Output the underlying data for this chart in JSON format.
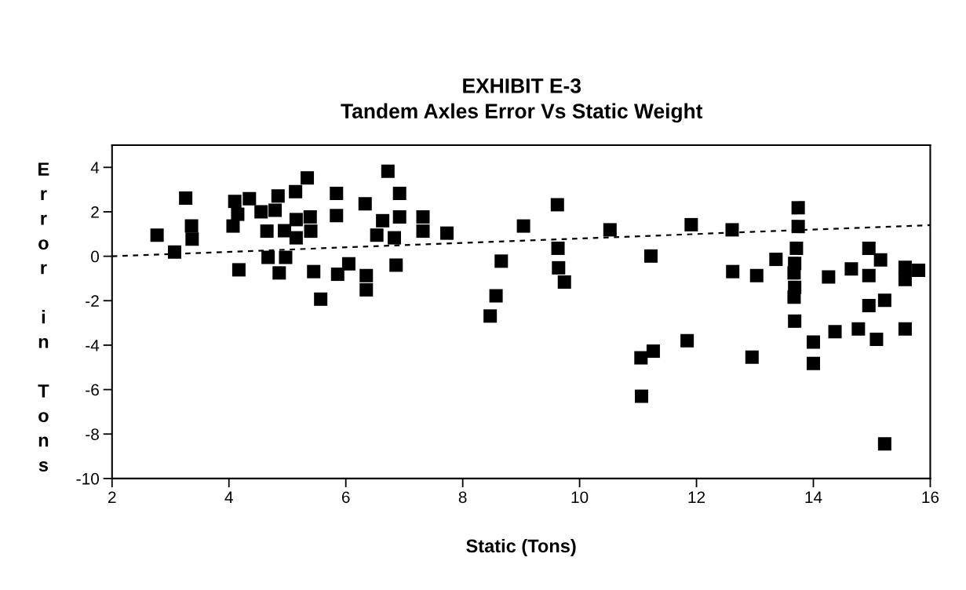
{
  "chart_data": {
    "type": "scatter",
    "title": "EXHIBIT E-3\nTandem Axles Error Vs Static Weight",
    "xlabel": "Static (Tons)",
    "ylabel": "Error in Tons",
    "xlim": [
      2,
      16
    ],
    "xticks": [
      2,
      4,
      6,
      8,
      10,
      12,
      14,
      16
    ],
    "ylim": [
      -10,
      5
    ],
    "yticks": [
      -10,
      -8,
      -6,
      -4,
      -2,
      0,
      2,
      4
    ],
    "grid": false,
    "legend": false,
    "marker": "square",
    "series": [
      {
        "color": "#000000",
        "x": [
          2.77,
          3.07,
          3.26,
          3.37,
          3.36,
          4.07,
          4.15,
          4.1,
          4.35,
          4.17,
          4.55,
          4.65,
          4.67,
          4.84,
          4.79,
          4.95,
          4.86,
          4.97,
          5.14,
          5.15,
          5.15,
          5.34,
          5.39,
          5.4,
          5.45,
          5.57,
          5.84,
          5.84,
          5.86,
          6.05,
          6.33,
          6.35,
          6.35,
          6.63,
          6.53,
          6.72,
          6.83,
          6.86,
          6.92,
          6.92,
          7.32,
          7.32,
          7.73,
          9.04,
          8.66,
          8.57,
          8.47,
          9.62,
          9.63,
          9.64,
          9.74,
          10.52,
          11.91,
          11.22,
          11.26,
          11.05,
          11.06,
          11.84,
          12.61,
          12.62,
          13.03,
          12.95,
          13.36,
          13.74,
          13.74,
          13.71,
          13.67,
          13.67,
          13.68,
          13.68,
          13.68,
          14.0,
          14.0,
          14.26,
          14.37,
          14.65,
          14.77,
          14.95,
          14.95,
          14.95,
          15.15,
          15.08,
          15.22,
          15.22,
          15.57,
          15.57,
          15.57,
          15.8
        ],
        "values": [
          0.95,
          0.19,
          2.62,
          0.77,
          1.36,
          1.36,
          1.89,
          2.47,
          2.59,
          -0.61,
          2.0,
          1.13,
          -0.05,
          2.71,
          2.07,
          1.15,
          -0.75,
          -0.05,
          2.91,
          1.65,
          0.83,
          3.53,
          1.77,
          1.13,
          -0.69,
          -1.93,
          2.83,
          1.83,
          -0.81,
          -0.34,
          2.36,
          -0.87,
          -1.51,
          1.6,
          0.95,
          3.83,
          0.83,
          -0.4,
          2.83,
          1.77,
          1.77,
          1.13,
          1.04,
          1.36,
          -0.22,
          -1.78,
          -2.69,
          2.32,
          0.36,
          -0.52,
          -1.16,
          1.19,
          1.42,
          0.01,
          -4.27,
          -4.57,
          -6.3,
          -3.8,
          1.19,
          -0.69,
          -0.87,
          -4.54,
          -0.14,
          2.18,
          1.34,
          0.36,
          -0.75,
          -1.84,
          -2.92,
          -0.32,
          -1.4,
          -3.86,
          -4.82,
          -0.93,
          -3.39,
          -0.57,
          -3.27,
          -0.87,
          -2.22,
          0.36,
          -0.16,
          -3.74,
          -8.44,
          -1.98,
          -1.05,
          -0.5,
          -3.27,
          -0.63
        ]
      },
      {
        "type": "line",
        "color": "#000000",
        "line_style": "dashed",
        "marker": "none",
        "x": [
          2,
          16
        ],
        "values": [
          0,
          1.4
        ]
      }
    ]
  }
}
